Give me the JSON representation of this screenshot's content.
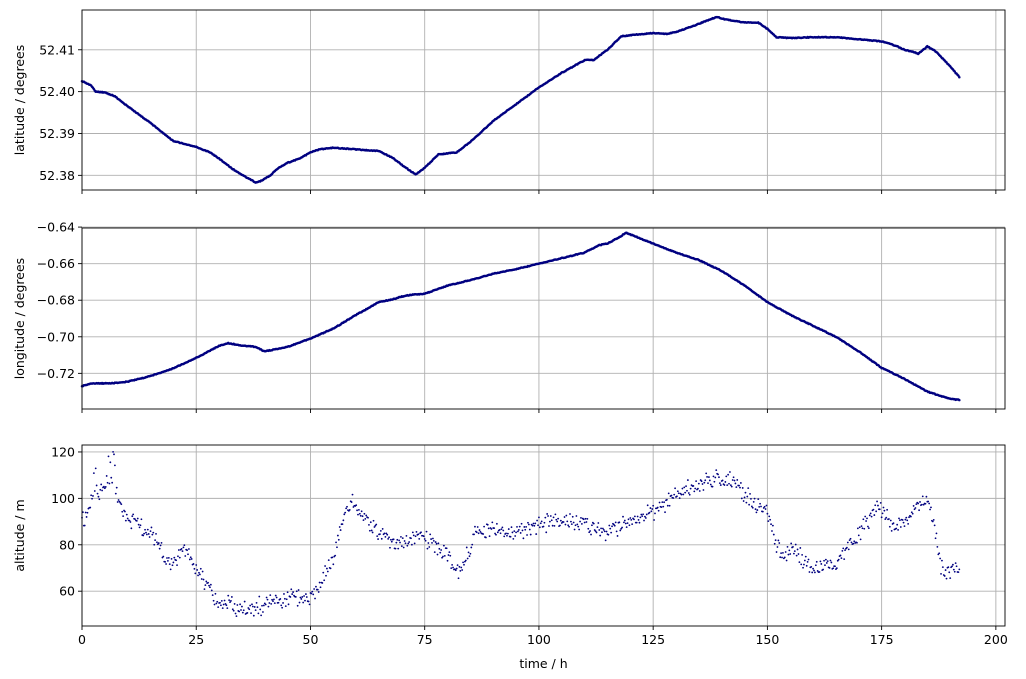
{
  "colors": {
    "series": "#000080",
    "grid": "#b0b0b0",
    "frame": "#000000",
    "background": "#ffffff"
  },
  "chart_data": [
    {
      "type": "scatter",
      "id": "latitude",
      "title": "",
      "xlabel": "",
      "ylabel": "latitude / degrees",
      "xlim": [
        0,
        202
      ],
      "ylim": [
        52.3765,
        52.4195
      ],
      "xticks": [
        0,
        25,
        50,
        75,
        100,
        125,
        150,
        175,
        200
      ],
      "yticks": [
        52.38,
        52.39,
        52.4,
        52.41
      ],
      "ytick_labels": [
        "52.38",
        "52.39",
        "52.40",
        "52.41"
      ],
      "show_xtick_labels": false,
      "grid": true,
      "marker": "dot",
      "x_step_hours": 0.2,
      "x_end_hours": 192,
      "series": [
        {
          "name": "",
          "x": [
            0,
            2,
            3,
            5,
            7,
            10,
            15,
            20,
            25,
            28,
            30,
            33,
            36,
            38,
            39,
            41,
            43,
            45,
            48,
            50,
            52,
            55,
            60,
            65,
            68,
            70,
            73,
            75,
            78,
            82,
            85,
            90,
            95,
            100,
            105,
            110,
            112,
            115,
            118,
            120,
            125,
            128,
            130,
            135,
            138,
            139,
            141,
            145,
            148,
            150,
            152,
            155,
            160,
            165,
            170,
            175,
            178,
            180,
            182,
            183,
            185,
            187,
            190,
            192
          ],
          "y": [
            52.4025,
            52.4015,
            52.4,
            52.3998,
            52.399,
            52.3965,
            52.3925,
            52.3882,
            52.3868,
            52.3855,
            52.384,
            52.3815,
            52.3795,
            52.3783,
            52.3786,
            52.3798,
            52.3818,
            52.383,
            52.3842,
            52.3855,
            52.3862,
            52.3866,
            52.3862,
            52.3858,
            52.3842,
            52.3825,
            52.3802,
            52.3818,
            52.385,
            52.3855,
            52.388,
            52.393,
            52.397,
            52.401,
            52.4045,
            52.4075,
            52.4076,
            52.41,
            52.4132,
            52.4135,
            52.414,
            52.4138,
            52.4142,
            52.4162,
            52.4175,
            52.4178,
            52.4172,
            52.4165,
            52.4165,
            52.415,
            52.413,
            52.4128,
            52.413,
            52.413,
            52.4125,
            52.412,
            52.411,
            52.41,
            52.4095,
            52.409,
            52.4108,
            52.4095,
            52.406,
            52.4035
          ]
        }
      ]
    },
    {
      "type": "scatter",
      "id": "longitude",
      "title": "",
      "xlabel": "",
      "ylabel": "longitude / degrees",
      "xlim": [
        0,
        202
      ],
      "ylim": [
        -0.7395,
        -0.6405
      ],
      "xticks": [
        0,
        25,
        50,
        75,
        100,
        125,
        150,
        175,
        200
      ],
      "yticks": [
        -0.72,
        -0.7,
        -0.68,
        -0.66,
        -0.64
      ],
      "ytick_labels": [
        "−0.72",
        "−0.70",
        "−0.68",
        "−0.66",
        "−0.64"
      ],
      "show_xtick_labels": false,
      "grid": true,
      "marker": "dot",
      "x_step_hours": 0.2,
      "x_end_hours": 192,
      "series": [
        {
          "name": "",
          "x": [
            0,
            2,
            5,
            8,
            10,
            15,
            20,
            25,
            30,
            32,
            35,
            38,
            40,
            45,
            50,
            55,
            60,
            65,
            68,
            70,
            72,
            75,
            80,
            85,
            90,
            95,
            100,
            105,
            110,
            113,
            115,
            118,
            119,
            120,
            125,
            130,
            135,
            140,
            145,
            150,
            155,
            160,
            165,
            170,
            175,
            180,
            185,
            190,
            192
          ],
          "y": [
            -0.727,
            -0.7255,
            -0.7255,
            -0.7252,
            -0.7245,
            -0.7215,
            -0.7172,
            -0.7115,
            -0.705,
            -0.7035,
            -0.7048,
            -0.7055,
            -0.708,
            -0.7055,
            -0.701,
            -0.6955,
            -0.688,
            -0.681,
            -0.6795,
            -0.678,
            -0.677,
            -0.6765,
            -0.672,
            -0.669,
            -0.6655,
            -0.663,
            -0.66,
            -0.657,
            -0.654,
            -0.65,
            -0.649,
            -0.645,
            -0.643,
            -0.644,
            -0.649,
            -0.654,
            -0.658,
            -0.664,
            -0.672,
            -0.681,
            -0.688,
            -0.694,
            -0.7,
            -0.708,
            -0.717,
            -0.723,
            -0.73,
            -0.734,
            -0.7345
          ]
        }
      ]
    },
    {
      "type": "scatter",
      "id": "altitude",
      "title": "",
      "xlabel": "time / h",
      "ylabel": "altitude / m",
      "xlim": [
        0,
        202
      ],
      "ylim": [
        45,
        123
      ],
      "xticks": [
        0,
        25,
        50,
        75,
        100,
        125,
        150,
        175,
        200
      ],
      "xtick_labels": [
        "0",
        "25",
        "50",
        "75",
        "100",
        "125",
        "150",
        "175",
        "200"
      ],
      "yticks": [
        60,
        80,
        100,
        120
      ],
      "ytick_labels": [
        "60",
        "80",
        "100",
        "120"
      ],
      "show_xtick_labels": true,
      "grid": true,
      "marker": "dot",
      "x_step_hours": 0.2,
      "x_end_hours": 192,
      "series": [
        {
          "name": "",
          "x": [
            0,
            1,
            2,
            3,
            4,
            5,
            6,
            7,
            8,
            9,
            10,
            12,
            15,
            17,
            18,
            20,
            22,
            24,
            26,
            28,
            30,
            33,
            36,
            38,
            40,
            42,
            45,
            48,
            50,
            52,
            55,
            57,
            58,
            59,
            60,
            62,
            65,
            68,
            72,
            74,
            76,
            78,
            80,
            82,
            84,
            86,
            88,
            90,
            92,
            95,
            100,
            105,
            110,
            113,
            115,
            118,
            120,
            123,
            125,
            127,
            130,
            133,
            135,
            138,
            140,
            143,
            145,
            148,
            150,
            152,
            154,
            156,
            158,
            160,
            162,
            165,
            168,
            170,
            172,
            174,
            176,
            178,
            180,
            182,
            184,
            185,
            186,
            188,
            190,
            192
          ],
          "y": [
            90,
            92,
            100,
            104,
            103,
            106,
            108,
            110,
            100,
            94,
            90,
            90,
            86,
            80,
            74,
            71,
            80,
            72,
            68,
            60,
            56,
            53,
            52,
            53,
            54,
            56,
            57,
            57,
            58,
            62,
            75,
            90,
            96,
            98,
            96,
            90,
            86,
            80,
            82,
            84,
            82,
            80,
            76,
            68,
            74,
            84,
            86,
            87,
            86,
            85,
            89,
            90,
            89,
            86,
            86,
            88,
            90,
            92,
            94,
            97,
            102,
            104,
            106,
            108,
            108,
            107,
            102,
            96,
            94,
            80,
            76,
            78,
            72,
            70,
            72,
            72,
            80,
            85,
            90,
            96,
            92,
            88,
            90,
            96,
            99,
            99,
            94,
            70,
            68,
            70
          ]
        }
      ]
    }
  ]
}
